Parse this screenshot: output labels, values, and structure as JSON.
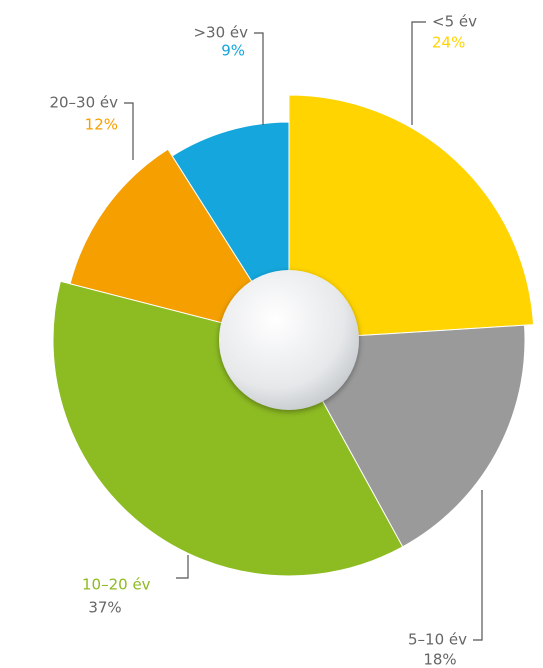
{
  "chart_data": {
    "type": "pie",
    "categories": [
      "<5 év",
      "5–10 év",
      "10–20 év",
      "20–30 év",
      ">30 év"
    ],
    "values": [
      24,
      18,
      37,
      12,
      9
    ],
    "value_labels": [
      "24%",
      "18%",
      "37%",
      "12%",
      "9%"
    ],
    "colors": [
      "#ffd400",
      "#9a9a9a",
      "#8dbb22",
      "#f5a000",
      "#14a6dc"
    ]
  }
}
